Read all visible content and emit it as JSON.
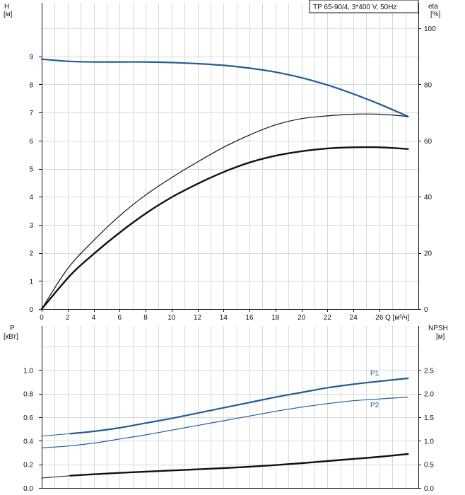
{
  "title": "TP 65-90/4, 3*400 V, 50Hz",
  "colors": {
    "blue": "#1f5c99",
    "black": "#111111",
    "grid": "#d9d9d9"
  },
  "chart_data": [
    {
      "type": "line",
      "x_unit_label": "Q [м³/ч]",
      "xlim": [
        0,
        29
      ],
      "x_ticks": [
        0,
        2,
        4,
        6,
        8,
        10,
        12,
        14,
        16,
        18,
        20,
        22,
        24,
        26
      ],
      "left_axis": {
        "label_1": "H",
        "label_2": "[м]",
        "ylim": [
          0,
          10
        ],
        "ticks": [
          0,
          1,
          2,
          3,
          4,
          5,
          6,
          7,
          8,
          9
        ]
      },
      "right_axis": {
        "label_1": "eta",
        "label_2": "[%]",
        "ylim": [
          0,
          100
        ],
        "ticks": [
          0,
          20,
          40,
          60,
          80,
          100
        ]
      },
      "grid": true,
      "series": [
        {
          "id": "H",
          "axis": "left",
          "color": "#1f5c99",
          "width": 2.2,
          "x": [
            0,
            2.2,
            4,
            6,
            8,
            10,
            12,
            14,
            16,
            18,
            20,
            22,
            24,
            26,
            28.2
          ],
          "y": [
            8.9,
            8.82,
            8.8,
            8.8,
            8.8,
            8.78,
            8.74,
            8.68,
            8.58,
            8.44,
            8.24,
            7.98,
            7.66,
            7.3,
            6.86
          ]
        },
        {
          "id": "H_eta_dashed_start",
          "axis": "left",
          "color": "#1f5c99",
          "width": 1.0,
          "x": [
            0,
            2.2
          ],
          "y": [
            8.9,
            8.82
          ]
        },
        {
          "id": "eta_total",
          "axis": "right",
          "color": "#111111",
          "width": 1.2,
          "x": [
            0,
            2,
            4,
            6,
            8,
            10,
            12,
            14,
            16,
            18,
            20,
            22,
            24,
            26,
            28.2
          ],
          "y": [
            0,
            14.4,
            24.4,
            33.2,
            40.6,
            46.8,
            52.4,
            57.6,
            62,
            65.6,
            67.8,
            68.8,
            69.4,
            69.4,
            68.6
          ]
        },
        {
          "id": "eta_pump",
          "axis": "right",
          "color": "#111111",
          "width": 2.4,
          "x": [
            0,
            2.2,
            4,
            6,
            8,
            10,
            12,
            14,
            16,
            18,
            20,
            22,
            24,
            26,
            28.2
          ],
          "y": [
            0,
            12,
            19.6,
            27.2,
            34,
            39.8,
            44.6,
            48.8,
            52.2,
            54.6,
            56.2,
            57.2,
            57.6,
            57.6,
            57
          ]
        }
      ]
    },
    {
      "type": "line",
      "xlim": [
        0,
        29
      ],
      "left_axis": {
        "label_1": "P",
        "label_2": "[кВт]",
        "ylim": [
          0,
          1.2
        ],
        "ticks": [
          "0.0",
          "0.2",
          "0.4",
          "0.6",
          "0.8",
          "1.0"
        ]
      },
      "right_axis": {
        "label_1": "NPSH",
        "label_2": "[м]",
        "ylim": [
          0,
          3
        ],
        "ticks": [
          "0.0",
          "0.5",
          "1.0",
          "1.5",
          "2.0",
          "2.5"
        ]
      },
      "grid": true,
      "series": [
        {
          "id": "P1",
          "label": "P1",
          "axis": "left",
          "color": "#1f5c99",
          "width": 2.2,
          "x": [
            2.2,
            4,
            6,
            8,
            10,
            12,
            14,
            16,
            18,
            20,
            22,
            24,
            26,
            28.2
          ],
          "y": [
            0.46,
            0.48,
            0.51,
            0.55,
            0.59,
            0.635,
            0.68,
            0.725,
            0.77,
            0.81,
            0.85,
            0.88,
            0.905,
            0.93
          ]
        },
        {
          "id": "P1_start",
          "axis": "left",
          "color": "#1f5c99",
          "width": 1.0,
          "x": [
            0,
            2.2
          ],
          "y": [
            0.44,
            0.46
          ]
        },
        {
          "id": "P2",
          "label": "P2",
          "axis": "left",
          "color": "#1f5c99",
          "width": 1.2,
          "x": [
            0,
            2,
            4,
            6,
            8,
            10,
            12,
            14,
            16,
            18,
            20,
            22,
            24,
            26,
            28.2
          ],
          "y": [
            0.34,
            0.355,
            0.38,
            0.415,
            0.45,
            0.49,
            0.53,
            0.57,
            0.61,
            0.65,
            0.685,
            0.715,
            0.74,
            0.755,
            0.77
          ]
        },
        {
          "id": "NPSH",
          "axis": "right",
          "color": "#111111",
          "width": 2.4,
          "x": [
            2.2,
            4,
            6,
            8,
            10,
            12,
            14,
            16,
            18,
            20,
            22,
            24,
            26,
            28.2
          ],
          "y": [
            0.26,
            0.29,
            0.32,
            0.345,
            0.37,
            0.395,
            0.42,
            0.45,
            0.485,
            0.525,
            0.57,
            0.615,
            0.66,
            0.72
          ]
        },
        {
          "id": "NPSH_start",
          "axis": "right",
          "color": "#111111",
          "width": 1.0,
          "x": [
            0,
            2.2
          ],
          "y": [
            0.21,
            0.26
          ]
        }
      ]
    }
  ]
}
